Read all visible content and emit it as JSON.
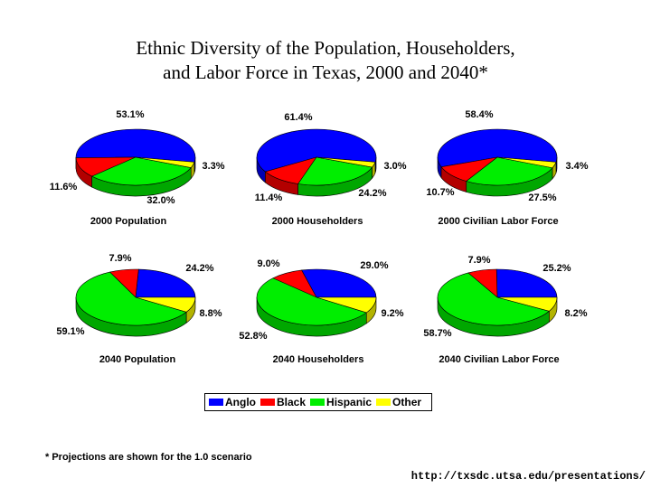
{
  "title_line1": "Ethnic Diversity of the Population, Householders,",
  "title_line2": "and Labor Force in Texas, 2000 and 2040*",
  "legend": [
    {
      "name": "Anglo",
      "color": "#0000ff"
    },
    {
      "name": "Black",
      "color": "#ff0000"
    },
    {
      "name": "Hispanic",
      "color": "#00ee00"
    },
    {
      "name": "Other",
      "color": "#ffff00"
    }
  ],
  "footnote": "* Projections are shown for the 1.0 scenario",
  "url": "http://txsdc.utsa.edu/presentations/",
  "chart_data": [
    {
      "type": "pie",
      "title": "2000 Population",
      "categories": [
        "Anglo",
        "Black",
        "Hispanic",
        "Other"
      ],
      "values": [
        53.1,
        11.6,
        32.0,
        3.3
      ],
      "labels": [
        "53.1%",
        "11.6%",
        "32.0%",
        "3.3%"
      ]
    },
    {
      "type": "pie",
      "title": "2000 Householders",
      "categories": [
        "Anglo",
        "Black",
        "Hispanic",
        "Other"
      ],
      "values": [
        61.4,
        11.4,
        24.2,
        3.0
      ],
      "labels": [
        "61.4%",
        "11.4%",
        "24.2%",
        "3.0%"
      ]
    },
    {
      "type": "pie",
      "title": "2000 Civilian Labor Force",
      "categories": [
        "Anglo",
        "Black",
        "Hispanic",
        "Other"
      ],
      "values": [
        58.4,
        10.7,
        27.5,
        3.4
      ],
      "labels": [
        "58.4%",
        "10.7%",
        "27.5%",
        "3.4%"
      ]
    },
    {
      "type": "pie",
      "title": "2040 Population",
      "categories": [
        "Anglo",
        "Black",
        "Hispanic",
        "Other"
      ],
      "values": [
        24.2,
        7.9,
        59.1,
        8.8
      ],
      "labels": [
        "24.2%",
        "7.9%",
        "59.1%",
        "8.8%"
      ]
    },
    {
      "type": "pie",
      "title": "2040 Householders",
      "categories": [
        "Anglo",
        "Black",
        "Hispanic",
        "Other"
      ],
      "values": [
        29.0,
        9.0,
        52.8,
        9.2
      ],
      "labels": [
        "29.0%",
        "9.0%",
        "52.8%",
        "9.2%"
      ]
    },
    {
      "type": "pie",
      "title": "2040 Civilian Labor Force",
      "categories": [
        "Anglo",
        "Black",
        "Hispanic",
        "Other"
      ],
      "values": [
        25.2,
        7.9,
        58.7,
        8.2
      ],
      "labels": [
        "25.2%",
        "7.9%",
        "58.7%",
        "8.2%"
      ]
    }
  ]
}
